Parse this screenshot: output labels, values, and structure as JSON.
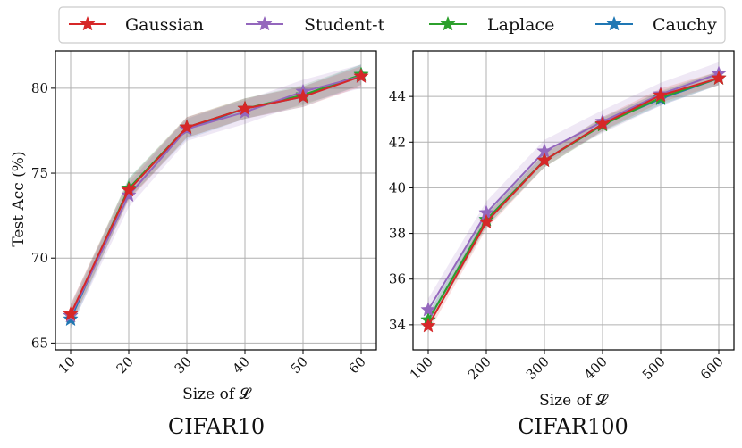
{
  "legend": [
    {
      "name": "Gaussian",
      "color": "#d62728"
    },
    {
      "name": "Student-t",
      "color": "#9467bd"
    },
    {
      "name": "Laplace",
      "color": "#2ca02c"
    },
    {
      "name": "Cauchy",
      "color": "#1f77b4"
    }
  ],
  "chart_data": [
    {
      "type": "line",
      "title": "CIFAR10",
      "xlabel": "Size of 𝓛",
      "ylabel": "Test Acc (%)",
      "x": [
        10,
        20,
        30,
        40,
        50,
        60
      ],
      "x_tick_labels": [
        "10",
        "20",
        "30",
        "40",
        "50",
        "60"
      ],
      "y_ticks": [
        65,
        70,
        75,
        80
      ],
      "y_tick_labels": [
        "65",
        "70",
        "75",
        "80"
      ],
      "ylim": [
        64.6,
        82.2
      ],
      "grid": true,
      "series": [
        {
          "name": "Gaussian",
          "color": "#d62728",
          "values": [
            66.7,
            74.0,
            77.7,
            78.8,
            79.5,
            80.7
          ],
          "band": 0.6
        },
        {
          "name": "Student-t",
          "color": "#9467bd",
          "values": [
            66.6,
            73.7,
            77.6,
            78.6,
            79.8,
            80.7
          ],
          "band": 0.7
        },
        {
          "name": "Laplace",
          "color": "#2ca02c",
          "values": [
            66.6,
            74.1,
            77.7,
            78.8,
            79.6,
            80.8
          ],
          "band": 0.6
        },
        {
          "name": "Cauchy",
          "color": "#1f77b4",
          "values": [
            66.4,
            74.1,
            77.6,
            78.8,
            79.5,
            80.8
          ],
          "band": 0.6
        }
      ]
    },
    {
      "type": "line",
      "title": "CIFAR100",
      "xlabel": "Size of 𝓛",
      "ylabel": "",
      "x": [
        100,
        200,
        300,
        400,
        500,
        600
      ],
      "x_tick_labels": [
        "100",
        "200",
        "300",
        "400",
        "500",
        "600"
      ],
      "y_ticks": [
        34,
        36,
        38,
        40,
        42,
        44
      ],
      "y_tick_labels": [
        "34",
        "36",
        "38",
        "40",
        "42",
        "44"
      ],
      "ylim": [
        32.9,
        46.0
      ],
      "grid": true,
      "series": [
        {
          "name": "Gaussian",
          "color": "#d62728",
          "values": [
            33.95,
            38.5,
            41.2,
            42.8,
            44.05,
            44.8
          ],
          "band": 0.3
        },
        {
          "name": "Student-t",
          "color": "#9467bd",
          "values": [
            34.65,
            38.9,
            41.6,
            42.9,
            44.1,
            45.0
          ],
          "band": 0.5
        },
        {
          "name": "Laplace",
          "color": "#2ca02c",
          "values": [
            34.2,
            38.6,
            41.2,
            42.75,
            43.95,
            44.8
          ],
          "band": 0.3
        },
        {
          "name": "Cauchy",
          "color": "#1f77b4",
          "values": [
            34.2,
            38.6,
            41.2,
            42.8,
            43.9,
            44.8
          ],
          "band": 0.3
        }
      ]
    }
  ]
}
